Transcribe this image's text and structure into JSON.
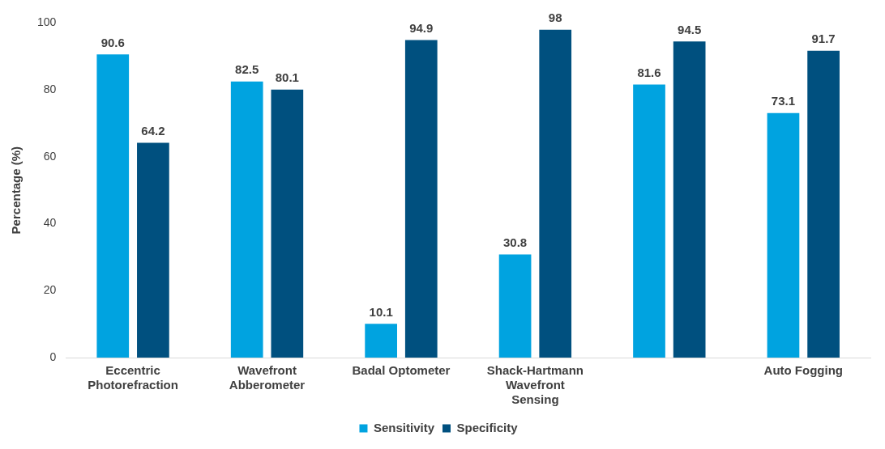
{
  "chart_data": {
    "type": "bar",
    "ylabel": "Percentage (%)",
    "categories": [
      "Eccentric Photorefraction",
      "Wavefront Abberometer",
      "Badal Optometer",
      "Shack-Hartmann Wavefront Sensing",
      null,
      "Auto Fogging"
    ],
    "series": [
      {
        "name": "Sensitivity",
        "color": "#00a3e0",
        "values": [
          90.6,
          82.5,
          10.1,
          30.8,
          81.6,
          73.1
        ]
      },
      {
        "name": "Specificity",
        "color": "#00507f",
        "values": [
          64.2,
          80.1,
          94.9,
          98,
          94.5,
          91.7
        ]
      }
    ],
    "ylim": [
      0,
      100
    ],
    "yticks": [
      0,
      20,
      40,
      60,
      80,
      100
    ],
    "grid": false,
    "legend": "bottom",
    "data_labels": true
  }
}
